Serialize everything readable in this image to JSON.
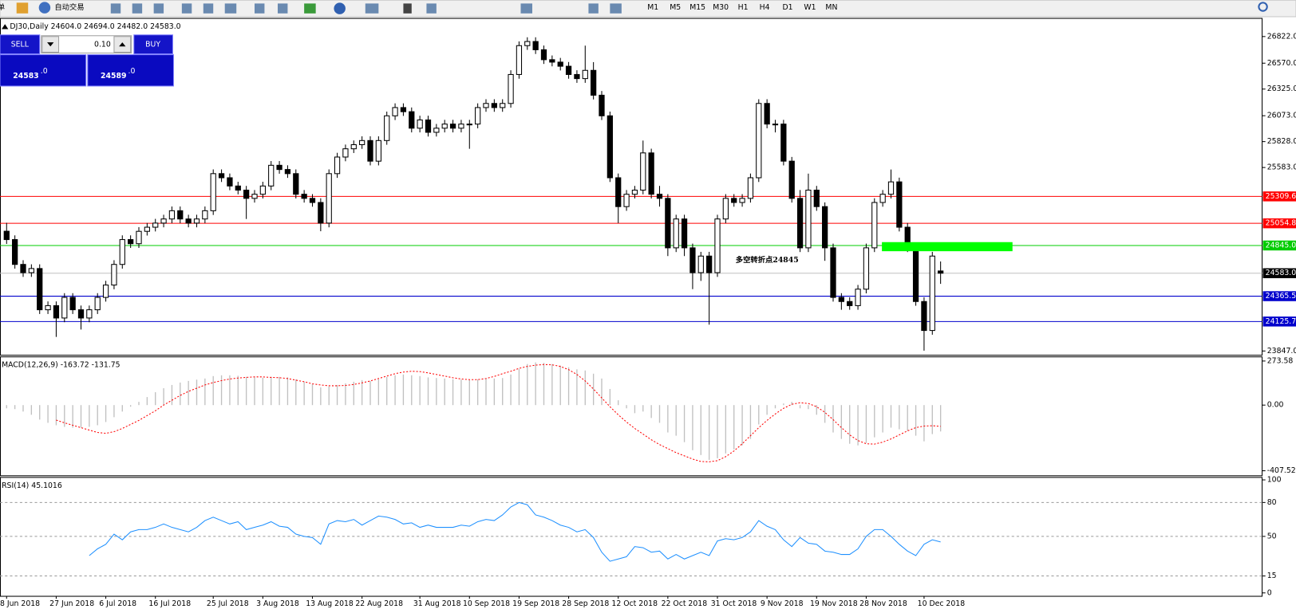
{
  "toolbar": {
    "menu": "单",
    "auto_trading": "自动交易",
    "timeframes": [
      "M1",
      "M5",
      "M15",
      "M30",
      "H1",
      "H4",
      "D1",
      "W1",
      "MN"
    ]
  },
  "trade_panel": {
    "sell": "SELL",
    "lot": "0.10",
    "buy": "BUY",
    "bid_main": "24583",
    "bid_frac": ".0",
    "ask_main": "24589",
    "ask_frac": ".0"
  },
  "chart_data": [
    {
      "type": "candlestick",
      "title": "DJ30,Daily  24604.0 24694.0 24482.0 24583.0",
      "categories": [
        "8 Jun 2018",
        null,
        null,
        null,
        null,
        null,
        "27 Jun 2018",
        null,
        null,
        null,
        null,
        null,
        "6 Jul 2018",
        null,
        null,
        null,
        null,
        null,
        "16 Jul 2018",
        null,
        null,
        null,
        null,
        null,
        null,
        "25 Jul 2018",
        null,
        null,
        null,
        null,
        null,
        "3 Aug 2018",
        null,
        null,
        null,
        null,
        null,
        "13 Aug 2018",
        null,
        null,
        null,
        null,
        null,
        "22 Aug 2018",
        null,
        null,
        null,
        null,
        null,
        null,
        "31 Aug 2018",
        null,
        null,
        null,
        null,
        null,
        "10 Sep 2018",
        null,
        null,
        null,
        null,
        null,
        "19 Sep 2018",
        null,
        null,
        null,
        null,
        null,
        "28 Sep 2018",
        null,
        null,
        null,
        null,
        null,
        "12 Oct 2018",
        null,
        null,
        null,
        null,
        null,
        "22 Oct 2018",
        null,
        null,
        null,
        null,
        null,
        "31 Oct 2018",
        null,
        null,
        null,
        null,
        null,
        "9 Nov 2018",
        null,
        null,
        null,
        null,
        null,
        "19 Nov 2018",
        null,
        null,
        null,
        null,
        null,
        "28 Nov 2018",
        null,
        null,
        null,
        null,
        null,
        null,
        "10 Dec 2018",
        null,
        null
      ],
      "open": [
        24980,
        24901,
        24666,
        24588,
        24627,
        24237,
        24276,
        24159,
        24354,
        24237,
        24159,
        24237,
        24354,
        24471,
        24666,
        24901,
        24862,
        24979,
        25018,
        25057,
        25096,
        25174,
        25096,
        25057,
        25096,
        25174,
        25525,
        25486,
        25408,
        25369,
        25291,
        25330,
        25408,
        25604,
        25564,
        25525,
        25330,
        25291,
        25252,
        25057,
        25525,
        25682,
        25760,
        25799,
        25838,
        25643,
        25838,
        26072,
        26150,
        26111,
        25955,
        26033,
        25916,
        25955,
        25994,
        25955,
        25994,
        25994,
        26150,
        26189,
        26150,
        26189,
        26463,
        26736,
        26775,
        26697,
        26603,
        26580,
        26541,
        26463,
        26424,
        26502,
        26267,
        26072,
        25486,
        25213,
        25330,
        25369,
        25721,
        25330,
        25291,
        24823,
        25096,
        24823,
        24588,
        24745,
        24588,
        25096,
        25291,
        25252,
        25291,
        25486,
        26189,
        25994,
        25994,
        25643,
        25291,
        24823,
        25369,
        25213,
        24823,
        24354,
        24315,
        24276,
        24432,
        24823,
        25252,
        25330,
        25447,
        25018,
        24823,
        24315,
        24041,
        24604
      ],
      "high": [
        25060,
        24941,
        24706,
        24667,
        24667,
        24316,
        24316,
        24394,
        24394,
        24277,
        24277,
        24394,
        24511,
        24706,
        24941,
        24941,
        25019,
        25058,
        25097,
        25136,
        25214,
        25214,
        25136,
        25136,
        25214,
        25565,
        25565,
        25526,
        25448,
        25409,
        25370,
        25448,
        25644,
        25644,
        25604,
        25565,
        25370,
        25331,
        25292,
        25565,
        25722,
        25800,
        25839,
        25878,
        25878,
        25878,
        26112,
        26190,
        26190,
        26151,
        26073,
        26073,
        25995,
        26034,
        26034,
        26034,
        26034,
        26190,
        26229,
        26229,
        26229,
        26503,
        26776,
        26815,
        26815,
        26737,
        26643,
        26620,
        26581,
        26503,
        26736,
        26580,
        26307,
        26112,
        25526,
        25370,
        25409,
        25838,
        25761,
        25409,
        25331,
        25136,
        25136,
        24863,
        24785,
        24785,
        25136,
        25331,
        25331,
        25331,
        25526,
        26229,
        26229,
        26034,
        26034,
        25683,
        25370,
        25525,
        25409,
        25253,
        24863,
        24394,
        24355,
        24472,
        24863,
        25292,
        25370,
        25564,
        25487,
        25058,
        24863,
        24355,
        24785,
        24694
      ],
      "low": [
        24860,
        24626,
        24548,
        24548,
        24197,
        24197,
        23980,
        24119,
        24197,
        24050,
        24119,
        24197,
        24314,
        24431,
        24626,
        24822,
        24822,
        24939,
        24978,
        25017,
        25056,
        25056,
        25017,
        25017,
        25056,
        25134,
        25446,
        25368,
        25329,
        25096,
        25251,
        25290,
        25368,
        25524,
        25485,
        25290,
        25251,
        25212,
        24980,
        25017,
        25485,
        25642,
        25720,
        25759,
        25603,
        25603,
        25798,
        26032,
        26071,
        25915,
        25915,
        25876,
        25876,
        25915,
        25915,
        25915,
        25760,
        25954,
        26110,
        26110,
        26110,
        26149,
        26423,
        26696,
        26657,
        26563,
        26540,
        26501,
        26423,
        26384,
        26384,
        26227,
        26032,
        25446,
        25057,
        25173,
        25290,
        25329,
        25290,
        25213,
        24745,
        24783,
        24745,
        24432,
        24510,
        24096,
        24548,
        25056,
        25212,
        25212,
        25251,
        25446,
        25954,
        25915,
        25603,
        25251,
        24783,
        24783,
        25173,
        24700,
        24314,
        24237,
        24237,
        24237,
        24392,
        24783,
        25212,
        25290,
        24978,
        24783,
        24275,
        23850,
        24001,
        24482
      ],
      "close": [
        24901,
        24666,
        24588,
        24627,
        24237,
        24276,
        24159,
        24354,
        24237,
        24159,
        24237,
        24354,
        24471,
        24666,
        24901,
        24862,
        24979,
        25018,
        25057,
        25096,
        25174,
        25096,
        25057,
        25096,
        25174,
        25525,
        25486,
        25408,
        25369,
        25291,
        25330,
        25408,
        25604,
        25564,
        25525,
        25330,
        25291,
        25252,
        25057,
        25525,
        25682,
        25760,
        25799,
        25838,
        25643,
        25838,
        26072,
        26150,
        26111,
        25955,
        26033,
        25916,
        25955,
        25994,
        25955,
        25994,
        25994,
        26150,
        26189,
        26150,
        26189,
        26463,
        26736,
        26775,
        26697,
        26603,
        26580,
        26541,
        26463,
        26424,
        26502,
        26267,
        26072,
        25486,
        25213,
        25330,
        25369,
        25721,
        25330,
        25291,
        24823,
        25096,
        24823,
        24588,
        24745,
        24588,
        25096,
        25291,
        25252,
        25291,
        25486,
        26189,
        25994,
        25994,
        25643,
        25291,
        24823,
        25369,
        25213,
        24823,
        24354,
        24315,
        24276,
        24432,
        24823,
        25252,
        25330,
        25447,
        25018,
        24823,
        24315,
        24041,
        24745,
        24583
      ],
      "up_color": "#ffffff",
      "down_color": "#000000",
      "ylim": [
        23807,
        26994
      ],
      "yticks": [
        {
          "value": 26822,
          "label": "26822.0"
        },
        {
          "value": 26570,
          "label": "26570.0"
        },
        {
          "value": 26325,
          "label": "26325.0"
        },
        {
          "value": 26073,
          "label": "26073.0"
        },
        {
          "value": 25828,
          "label": "25828.0"
        },
        {
          "value": 25583,
          "label": "25583.0"
        },
        {
          "value": 23847,
          "label": "23847.0"
        }
      ],
      "lines": [
        {
          "value": 25309.6,
          "label": "25309.6",
          "color": "#ff0000"
        },
        {
          "value": 25054.8,
          "label": "25054.8",
          "color": "#ff0000"
        },
        {
          "value": 24845,
          "label": "24845.0",
          "color": "#00cc00"
        },
        {
          "value": 24365.5,
          "label": "24365.5",
          "color": "#0000cc"
        },
        {
          "value": 24125.7,
          "label": "24125.7",
          "color": "#0000cc"
        }
      ],
      "last": {
        "value": 24583,
        "label": "24583.0",
        "color": "#c0c0c0"
      },
      "zone": {
        "ylim": [
          24791,
          24877
        ],
        "color": "#00ff00"
      },
      "annotation": {
        "text": "多空转折点24845",
        "color": "#00ff00"
      }
    },
    {
      "type": "macd",
      "title": "MACD(12,26,9) -163.72 -131.75",
      "series": [
        {
          "style": "bar",
          "color": "#c0c0c0",
          "values": [
            -20,
            -25,
            -40,
            -60,
            -90,
            -110,
            -125,
            -135,
            -140,
            -140,
            -135,
            -125,
            -105,
            -75,
            -40,
            -10,
            20,
            50,
            80,
            105,
            125,
            140,
            150,
            158,
            165,
            180,
            185,
            185,
            182,
            175,
            172,
            170,
            175,
            175,
            172,
            160,
            145,
            130,
            110,
            115,
            125,
            135,
            145,
            155,
            150,
            160,
            175,
            185,
            190,
            185,
            180,
            172,
            168,
            165,
            160,
            158,
            155,
            160,
            165,
            165,
            168,
            190,
            225,
            255,
            265,
            262,
            255,
            245,
            235,
            222,
            215,
            195,
            165,
            100,
            30,
            -20,
            -50,
            -40,
            -80,
            -110,
            -170,
            -190,
            -230,
            -280,
            -310,
            -340,
            -330,
            -300,
            -275,
            -250,
            -210,
            -120,
            -60,
            -20,
            10,
            20,
            -20,
            -25,
            -60,
            -110,
            -170,
            -210,
            -240,
            -250,
            -235,
            -200,
            -170,
            -140,
            -150,
            -160,
            -190,
            -225,
            -180,
            -163.72
          ]
        },
        {
          "style": "dashed",
          "color": "#ff0000",
          "values": [
            null,
            null,
            null,
            null,
            null,
            null,
            -93,
            -110,
            -125,
            -140,
            -155,
            -170,
            -175,
            -165,
            -145,
            -120,
            -95,
            -65,
            -35,
            0,
            30,
            60,
            85,
            105,
            125,
            140,
            152,
            162,
            168,
            172,
            175,
            175,
            172,
            170,
            165,
            155,
            145,
            132,
            125,
            120,
            120,
            122,
            128,
            138,
            150,
            165,
            180,
            195,
            205,
            210,
            208,
            200,
            190,
            180,
            170,
            162,
            158,
            158,
            165,
            178,
            195,
            210,
            228,
            240,
            248,
            252,
            250,
            240,
            220,
            190,
            150,
            100,
            45,
            -10,
            -60,
            -105,
            -145,
            -180,
            -215,
            -245,
            -270,
            -295,
            -315,
            -335,
            -350,
            -352,
            -345,
            -320,
            -285,
            -240,
            -190,
            -140,
            -95,
            -55,
            -20,
            5,
            15,
            10,
            -10,
            -45,
            -90,
            -140,
            -185,
            -220,
            -240,
            -242,
            -230,
            -210,
            -185,
            -160,
            -140,
            -130,
            -128,
            -131.75
          ]
        }
      ],
      "ylim": [
        -438.5,
        299.4
      ],
      "yticks": [
        273.58,
        {
          "value": 0,
          "label": "0.00"
        },
        -407.52
      ]
    },
    {
      "type": "line",
      "title": "RSI(14) 45.1016",
      "color": "#1e90ff",
      "values": [
        null,
        null,
        null,
        null,
        null,
        null,
        null,
        null,
        null,
        null,
        33,
        39,
        43,
        52,
        47,
        54,
        56,
        56,
        58,
        61,
        58,
        56,
        54,
        58,
        64,
        67,
        64,
        61,
        63,
        56,
        58,
        60,
        63,
        59,
        58,
        52,
        50,
        49,
        43,
        61,
        64,
        63,
        65,
        60,
        64,
        68,
        67,
        65,
        61,
        62,
        58,
        60,
        58,
        58,
        58,
        60,
        59,
        63,
        65,
        64,
        69,
        76,
        80,
        78,
        69,
        67,
        64,
        60,
        58,
        54,
        56,
        49,
        36,
        28,
        30,
        32,
        41,
        40,
        36,
        37,
        30,
        34,
        30,
        33,
        36,
        33,
        46,
        48,
        47,
        49,
        54,
        64,
        59,
        56,
        47,
        41,
        49,
        44,
        43,
        37,
        36,
        34,
        34,
        39,
        50,
        56,
        56,
        50,
        43,
        37,
        33,
        43,
        47,
        45.1016
      ],
      "ylim": [
        -3,
        102.2
      ],
      "yticks": [
        100,
        80,
        50,
        15,
        0
      ],
      "grid": true
    }
  ]
}
